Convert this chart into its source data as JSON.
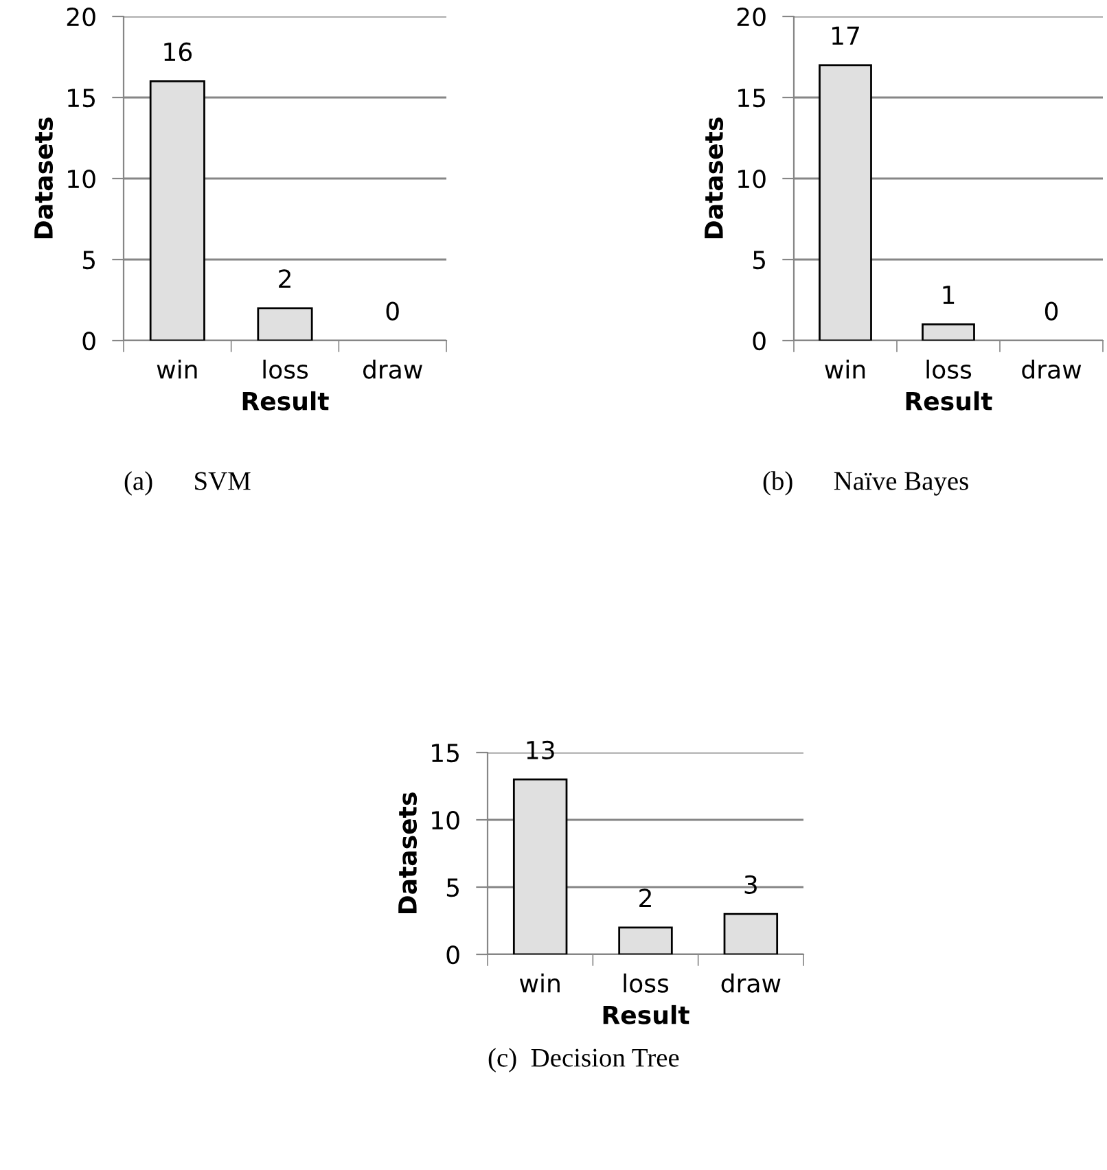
{
  "chart_data": [
    {
      "type": "bar",
      "categories": [
        "win",
        "loss",
        "draw"
      ],
      "values": [
        16,
        2,
        0
      ],
      "color": "#e0e0e0",
      "xlabel": "Result",
      "ylabel": "Datasets",
      "ylim": [
        0,
        20
      ],
      "yticks": [
        0,
        5,
        10,
        15,
        20
      ],
      "grid": "y",
      "data_labels": true,
      "annotations": [
        "(a)      SVM"
      ]
    },
    {
      "type": "bar",
      "categories": [
        "win",
        "loss",
        "draw"
      ],
      "values": [
        17,
        1,
        0
      ],
      "color": "#e0e0e0",
      "xlabel": "Result",
      "ylabel": "Datasets",
      "ylim": [
        0,
        20
      ],
      "yticks": [
        0,
        5,
        10,
        15,
        20
      ],
      "grid": "y",
      "data_labels": true,
      "annotations": [
        "(b)      Naïve Bayes"
      ]
    },
    {
      "type": "bar",
      "categories": [
        "win",
        "loss",
        "draw"
      ],
      "values": [
        13,
        2,
        3
      ],
      "color": "#e0e0e0",
      "xlabel": "Result",
      "ylabel": "Datasets",
      "ylim": [
        0,
        15
      ],
      "yticks": [
        0,
        5,
        10,
        15
      ],
      "grid": "y",
      "data_labels": true,
      "annotations": [
        "(c)  Decision Tree"
      ]
    }
  ]
}
